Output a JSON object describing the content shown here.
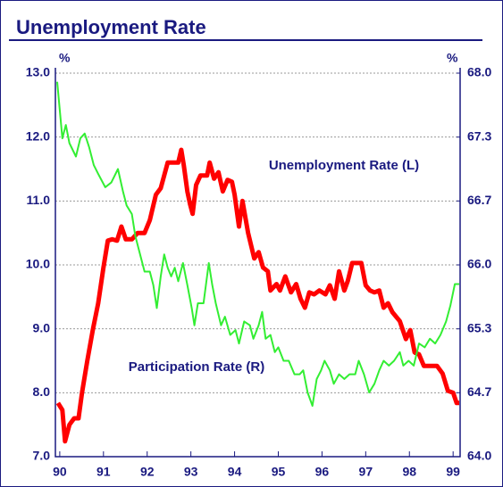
{
  "chart_data": {
    "type": "line",
    "title": "Unemployment Rate",
    "y_unit": "%",
    "y2_unit": "%",
    "xlim": [
      89.9,
      99.16
    ],
    "xticks": [
      90,
      91,
      92,
      93,
      94,
      95,
      96,
      97,
      98,
      99
    ],
    "ylim": [
      7,
      13
    ],
    "yticks": [
      {
        "value": 7,
        "label": "7.0"
      },
      {
        "value": 8,
        "label": "8.0"
      },
      {
        "value": 9,
        "label": "9.0"
      },
      {
        "value": 10,
        "label": "10.0"
      },
      {
        "value": 11,
        "label": "11.0"
      },
      {
        "value": 12,
        "label": "12.0"
      },
      {
        "value": 13,
        "label": "13.0"
      }
    ],
    "y2lim": [
      64,
      68
    ],
    "y2ticks": [
      {
        "value": 64,
        "label": "64.0"
      },
      {
        "value": 64.667,
        "label": "64.7"
      },
      {
        "value": 65.333,
        "label": "65.3"
      },
      {
        "value": 66,
        "label": "66.0"
      },
      {
        "value": 66.667,
        "label": "66.7"
      },
      {
        "value": 67.333,
        "label": "67.3"
      },
      {
        "value": 68,
        "label": "68.0"
      }
    ],
    "grid": true,
    "series": [
      {
        "name": "Unemployment Rate (L)",
        "color": "#ff0000",
        "axis": "y",
        "x": [
          89.96,
          90.06,
          90.12,
          90.22,
          90.33,
          90.43,
          90.51,
          90.63,
          90.76,
          90.88,
          91.0,
          91.1,
          91.2,
          91.31,
          91.41,
          91.51,
          91.65,
          91.78,
          91.94,
          92.06,
          92.2,
          92.31,
          92.39,
          92.47,
          92.61,
          92.71,
          92.78,
          92.84,
          92.92,
          92.98,
          93.04,
          93.12,
          93.22,
          93.37,
          93.43,
          93.53,
          93.63,
          93.73,
          93.84,
          93.94,
          94.0,
          94.1,
          94.18,
          94.31,
          94.45,
          94.55,
          94.65,
          94.76,
          94.82,
          94.96,
          95.04,
          95.16,
          95.29,
          95.41,
          95.51,
          95.61,
          95.71,
          95.82,
          95.94,
          96.08,
          96.18,
          96.29,
          96.39,
          96.51,
          96.59,
          96.69,
          96.9,
          97.0,
          97.1,
          97.2,
          97.31,
          97.41,
          97.51,
          97.61,
          97.78,
          97.92,
          98.02,
          98.12,
          98.22,
          98.33,
          98.47,
          98.63,
          98.76,
          98.88,
          99.0,
          99.08,
          99.14
        ],
        "values": [
          7.84,
          7.73,
          7.24,
          7.5,
          7.6,
          7.6,
          8.0,
          8.5,
          9.0,
          9.4,
          9.96,
          10.38,
          10.4,
          10.38,
          10.6,
          10.4,
          10.4,
          10.5,
          10.5,
          10.7,
          11.1,
          11.2,
          11.4,
          11.6,
          11.6,
          11.6,
          11.8,
          11.55,
          11.15,
          10.95,
          10.8,
          11.25,
          11.4,
          11.4,
          11.6,
          11.35,
          11.45,
          11.15,
          11.33,
          11.3,
          11.1,
          10.6,
          11.0,
          10.5,
          10.1,
          10.2,
          9.96,
          9.9,
          9.6,
          9.7,
          9.6,
          9.82,
          9.57,
          9.7,
          9.47,
          9.33,
          9.57,
          9.54,
          9.6,
          9.54,
          9.68,
          9.47,
          9.9,
          9.6,
          9.75,
          10.03,
          10.03,
          9.68,
          9.6,
          9.57,
          9.6,
          9.33,
          9.4,
          9.26,
          9.12,
          8.84,
          8.98,
          8.63,
          8.6,
          8.42,
          8.42,
          8.42,
          8.3,
          8.03,
          8.0,
          7.84,
          7.84
        ]
      },
      {
        "name": "Participation Rate (R)",
        "color": "#33ee33",
        "axis": "y2",
        "x": [
          89.94,
          90.06,
          90.14,
          90.22,
          90.37,
          90.47,
          90.57,
          90.67,
          90.78,
          90.88,
          91.04,
          91.18,
          91.33,
          91.45,
          91.53,
          91.65,
          91.73,
          91.86,
          91.94,
          92.06,
          92.14,
          92.22,
          92.31,
          92.39,
          92.47,
          92.55,
          92.63,
          92.71,
          92.82,
          92.92,
          93.02,
          93.08,
          93.16,
          93.29,
          93.41,
          93.49,
          93.57,
          93.69,
          93.78,
          93.9,
          94.02,
          94.1,
          94.22,
          94.35,
          94.43,
          94.55,
          94.63,
          94.71,
          94.82,
          94.92,
          95.0,
          95.12,
          95.24,
          95.37,
          95.49,
          95.57,
          95.67,
          95.78,
          95.88,
          95.98,
          96.06,
          96.18,
          96.27,
          96.39,
          96.51,
          96.63,
          96.76,
          96.84,
          96.96,
          97.08,
          97.2,
          97.31,
          97.41,
          97.53,
          97.65,
          97.78,
          97.86,
          97.98,
          98.1,
          98.22,
          98.35,
          98.47,
          98.59,
          98.71,
          98.84,
          98.94,
          99.04,
          99.14
        ],
        "values": [
          67.91,
          67.32,
          67.46,
          67.27,
          67.13,
          67.32,
          67.37,
          67.23,
          67.04,
          66.95,
          66.81,
          66.86,
          67.0,
          66.76,
          66.62,
          66.53,
          66.3,
          66.07,
          65.93,
          65.93,
          65.79,
          65.55,
          65.88,
          66.11,
          65.97,
          65.88,
          65.97,
          65.83,
          66.02,
          65.79,
          65.55,
          65.37,
          65.6,
          65.6,
          66.02,
          65.79,
          65.6,
          65.37,
          65.46,
          65.27,
          65.32,
          65.18,
          65.41,
          65.37,
          65.23,
          65.37,
          65.51,
          65.23,
          65.27,
          65.09,
          65.14,
          65.0,
          65.0,
          64.86,
          64.86,
          64.9,
          64.67,
          64.53,
          64.81,
          64.9,
          65.0,
          64.9,
          64.76,
          64.86,
          64.81,
          64.86,
          64.86,
          65.0,
          64.86,
          64.67,
          64.76,
          64.9,
          65.0,
          64.95,
          65.0,
          65.09,
          64.95,
          65.0,
          64.95,
          65.18,
          65.14,
          65.23,
          65.18,
          65.27,
          65.41,
          65.58,
          65.8,
          65.8
        ]
      }
    ]
  }
}
